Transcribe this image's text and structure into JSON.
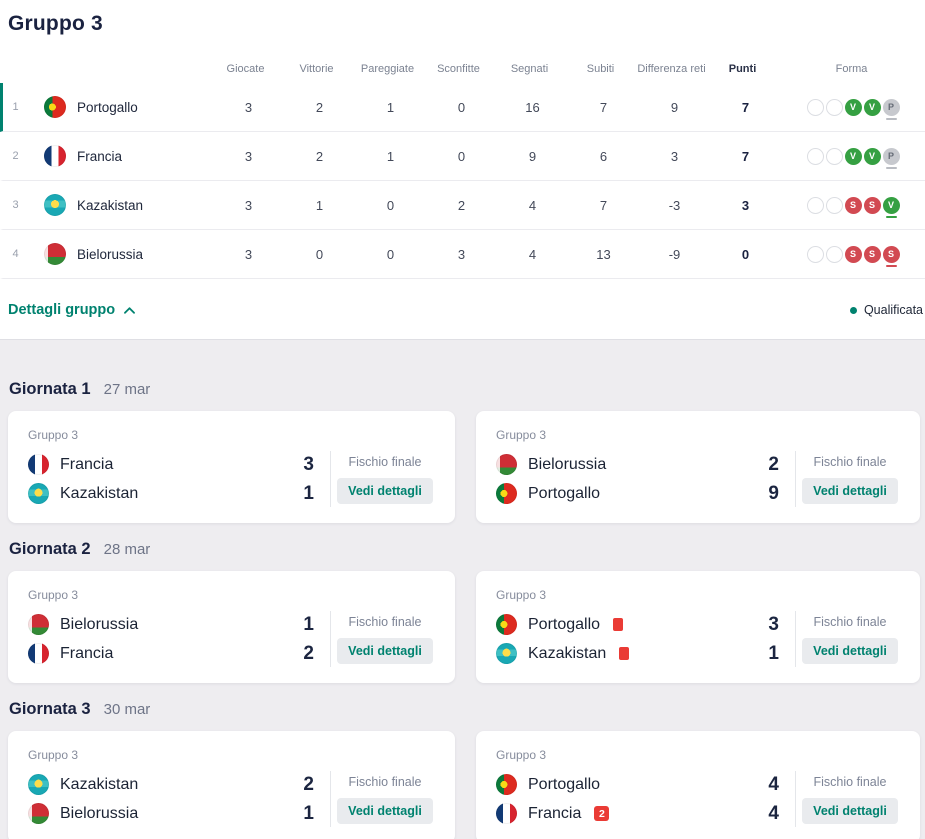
{
  "page": {
    "title": "Gruppo 3"
  },
  "colors": {
    "accent_teal": "#00826f",
    "win_green": "#35a042",
    "loss_red": "#d24a52",
    "draw_gray": "#c7c9ce",
    "red_card": "#ea3b35"
  },
  "standings": {
    "headers": [
      "Giocate",
      "Vittorie",
      "Pareggiate",
      "Sconfitte",
      "Segnati",
      "Subiti",
      "Differenza reti",
      "Punti",
      "Forma"
    ],
    "details_label": "Dettagli gruppo",
    "legend_qualified": "Qualificata",
    "rows": [
      {
        "pos": "1",
        "team": "Portogallo",
        "flag": "portugal",
        "qualified": true,
        "stats": [
          "3",
          "2",
          "1",
          "0",
          "16",
          "7",
          "9",
          "7"
        ],
        "forma": [
          "",
          "",
          "V",
          "V",
          "P"
        ]
      },
      {
        "pos": "2",
        "team": "Francia",
        "flag": "france",
        "qualified": false,
        "stats": [
          "3",
          "2",
          "1",
          "0",
          "9",
          "6",
          "3",
          "7"
        ],
        "forma": [
          "",
          "",
          "V",
          "V",
          "P"
        ]
      },
      {
        "pos": "3",
        "team": "Kazakistan",
        "flag": "kazakhstan",
        "qualified": false,
        "stats": [
          "3",
          "1",
          "0",
          "2",
          "4",
          "7",
          "-3",
          "3"
        ],
        "forma": [
          "",
          "",
          "S",
          "S",
          "V"
        ]
      },
      {
        "pos": "4",
        "team": "Bielorussia",
        "flag": "belarus",
        "qualified": false,
        "stats": [
          "3",
          "0",
          "0",
          "3",
          "4",
          "13",
          "-9",
          "0"
        ],
        "forma": [
          "",
          "",
          "S",
          "S",
          "S"
        ]
      }
    ]
  },
  "matchdays": [
    {
      "title": "Giornata 1",
      "date": "27 mar",
      "matches": [
        {
          "group_label": "Gruppo 3",
          "status": "Fischio finale",
          "cta": "Vedi dettagli",
          "teams": [
            {
              "name": "Francia",
              "flag": "france",
              "score": "3",
              "red_cards": 0
            },
            {
              "name": "Kazakistan",
              "flag": "kazakhstan",
              "score": "1",
              "red_cards": 0
            }
          ]
        },
        {
          "group_label": "Gruppo 3",
          "status": "Fischio finale",
          "cta": "Vedi dettagli",
          "teams": [
            {
              "name": "Bielorussia",
              "flag": "belarus",
              "score": "2",
              "red_cards": 0
            },
            {
              "name": "Portogallo",
              "flag": "portugal",
              "score": "9",
              "red_cards": 0
            }
          ]
        }
      ]
    },
    {
      "title": "Giornata 2",
      "date": "28 mar",
      "matches": [
        {
          "group_label": "Gruppo 3",
          "status": "Fischio finale",
          "cta": "Vedi dettagli",
          "teams": [
            {
              "name": "Bielorussia",
              "flag": "belarus",
              "score": "1",
              "red_cards": 0
            },
            {
              "name": "Francia",
              "flag": "france",
              "score": "2",
              "red_cards": 0
            }
          ]
        },
        {
          "group_label": "Gruppo 3",
          "status": "Fischio finale",
          "cta": "Vedi dettagli",
          "teams": [
            {
              "name": "Portogallo",
              "flag": "portugal",
              "score": "3",
              "red_cards": 1
            },
            {
              "name": "Kazakistan",
              "flag": "kazakhstan",
              "score": "1",
              "red_cards": 1
            }
          ]
        }
      ]
    },
    {
      "title": "Giornata 3",
      "date": "30 mar",
      "matches": [
        {
          "group_label": "Gruppo 3",
          "status": "Fischio finale",
          "cta": "Vedi dettagli",
          "teams": [
            {
              "name": "Kazakistan",
              "flag": "kazakhstan",
              "score": "2",
              "red_cards": 0
            },
            {
              "name": "Bielorussia",
              "flag": "belarus",
              "score": "1",
              "red_cards": 0
            }
          ]
        },
        {
          "group_label": "Gruppo 3",
          "status": "Fischio finale",
          "cta": "Vedi dettagli",
          "teams": [
            {
              "name": "Portogallo",
              "flag": "portugal",
              "score": "4",
              "red_cards": 0
            },
            {
              "name": "Francia",
              "flag": "france",
              "score": "4",
              "red_cards": 2
            }
          ]
        }
      ]
    }
  ]
}
